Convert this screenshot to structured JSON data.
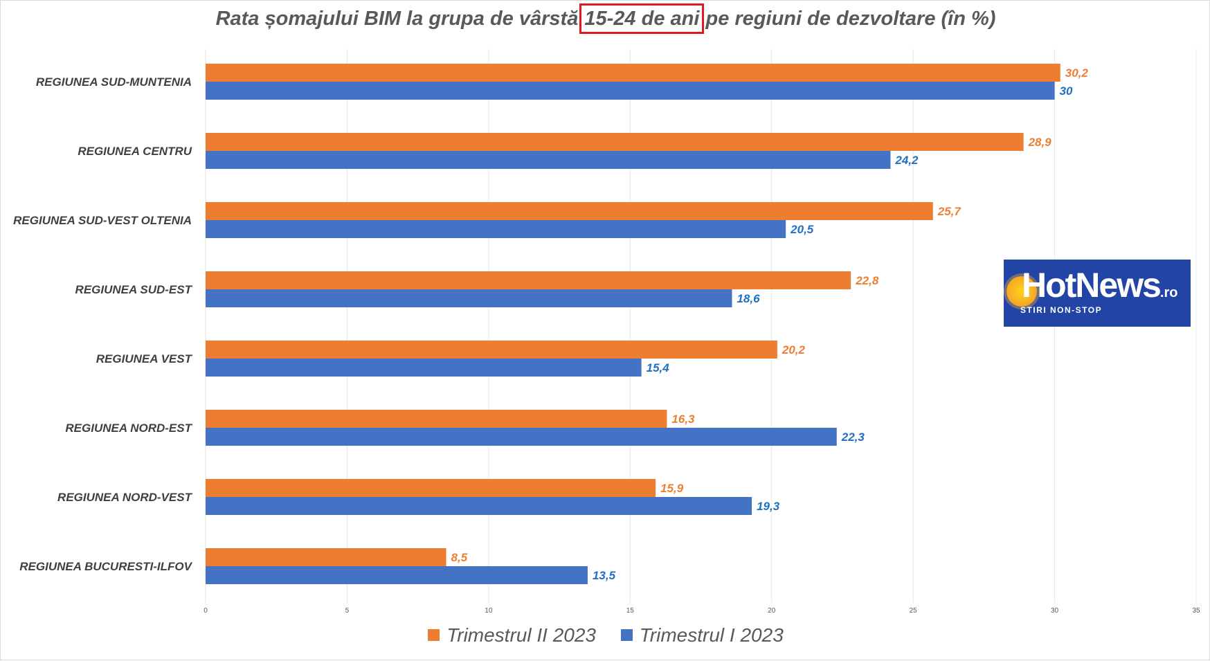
{
  "title": {
    "before": "Rata șomajului BIM la grupa de vârstă ",
    "highlight": "15-24 de ani",
    "after": " pe regiuni de dezvoltare (în %)"
  },
  "logo": {
    "name": "HotNews",
    "suffix": ".ro",
    "tagline": "STIRI NON-STOP"
  },
  "colors": {
    "series1": "#ed7d31",
    "series2": "#4472c4",
    "series1_label": "#ed7d31",
    "series2_label": "#1f6fc4",
    "gridline": "#e6e6e6",
    "highlight_box": "#e0181f"
  },
  "chart_data": {
    "type": "bar",
    "orientation": "horizontal",
    "title": "Rata șomajului BIM la grupa de vârstă 15-24 de ani pe regiuni de dezvoltare (în %)",
    "categories": [
      "REGIUNEA SUD-MUNTENIA",
      "REGIUNEA CENTRU",
      "REGIUNEA SUD-VEST OLTENIA",
      "REGIUNEA SUD-EST",
      "REGIUNEA VEST",
      "REGIUNEA NORD-EST",
      "REGIUNEA NORD-VEST",
      "REGIUNEA BUCURESTI-ILFOV"
    ],
    "series": [
      {
        "name": "Trimestrul II 2023",
        "values": [
          30.2,
          28.9,
          25.7,
          22.8,
          20.2,
          16.3,
          15.9,
          8.5
        ],
        "labels": [
          "30,2",
          "28,9",
          "25,7",
          "22,8",
          "20,2",
          "16,3",
          "15,9",
          "8,5"
        ]
      },
      {
        "name": "Trimestrul I 2023",
        "values": [
          30,
          24.2,
          20.5,
          18.6,
          15.4,
          22.3,
          19.3,
          13.5
        ],
        "labels": [
          "30",
          "24,2",
          "20,5",
          "18,6",
          "15,4",
          "22,3",
          "19,3",
          "13,5"
        ]
      }
    ],
    "xlim": [
      0,
      35
    ],
    "xticks": [
      0,
      5,
      10,
      15,
      20,
      25,
      30,
      35
    ],
    "xlabel": "",
    "ylabel": "",
    "grid": true,
    "legend_position": "bottom"
  }
}
